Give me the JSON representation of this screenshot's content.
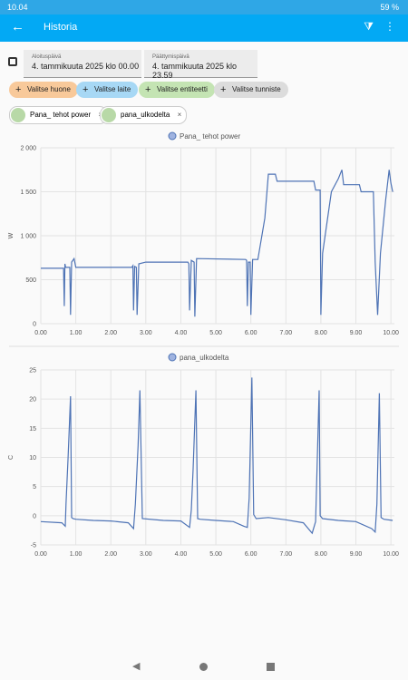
{
  "status_bar": {
    "time": "10.04",
    "battery": "59 %"
  },
  "app_bar": {
    "title": "Historia"
  },
  "date_range": {
    "start_label": "Aloituspäivä",
    "start": "4. tammikuuta 2025 klo 00.00",
    "end_label": "Päättymispäivä",
    "end": "4. tammikuuta 2025 klo 23.59"
  },
  "pickers": [
    "Valitse huone",
    "Valitse laite",
    "Valitse entiteetti",
    "Valitse tunniste"
  ],
  "selected": [
    "Pana_ tehot power",
    "pana_ulkodelta"
  ],
  "chart_data": [
    {
      "type": "line",
      "ylabel": "W",
      "grid": true,
      "x": [
        0,
        0.65,
        0.67,
        0.69,
        0.71,
        0.83,
        0.85,
        0.88,
        0.95,
        1.0,
        2.6,
        2.63,
        2.65,
        2.68,
        2.73,
        2.75,
        2.8,
        3.0,
        4.2,
        4.23,
        4.25,
        4.3,
        4.38,
        4.4,
        4.45,
        5.85,
        5.88,
        5.9,
        5.93,
        5.98,
        6.0,
        6.05,
        6.2,
        6.4,
        6.5,
        6.7,
        6.75,
        7.8,
        7.85,
        7.98,
        8.0,
        8.05,
        8.3,
        8.5,
        8.6,
        8.65,
        9.1,
        9.15,
        9.5,
        9.55,
        9.62,
        9.7,
        9.85,
        9.95,
        10.0,
        10.05
      ],
      "series": [
        {
          "name": "Pana_ tehot power",
          "color": "#4e73b5",
          "values": [
            630,
            630,
            200,
            680,
            640,
            640,
            100,
            700,
            740,
            640,
            640,
            660,
            150,
            650,
            640,
            100,
            680,
            700,
            700,
            680,
            150,
            720,
            700,
            80,
            740,
            730,
            720,
            200,
            700,
            700,
            100,
            730,
            730,
            1200,
            1700,
            1700,
            1620,
            1620,
            1520,
            1520,
            100,
            800,
            1500,
            1650,
            1750,
            1580,
            1580,
            1500,
            1500,
            700,
            100,
            800,
            1400,
            1750,
            1600,
            1500
          ]
        }
      ],
      "xlim": [
        0,
        10.1
      ],
      "xticks": [
        {
          "value": 0,
          "label": "0.00"
        },
        {
          "value": 1,
          "label": "1.00"
        },
        {
          "value": 2,
          "label": "2.00"
        },
        {
          "value": 3,
          "label": "3.00"
        },
        {
          "value": 4,
          "label": "4.00"
        },
        {
          "value": 5,
          "label": "5.00"
        },
        {
          "value": 6,
          "label": "6.00"
        },
        {
          "value": 7,
          "label": "7.00"
        },
        {
          "value": 8,
          "label": "8.00"
        },
        {
          "value": 9,
          "label": "9.00"
        },
        {
          "value": 10,
          "label": "10.00"
        }
      ],
      "ylim": [
        0,
        2000
      ],
      "yticks": [
        0,
        500,
        {
          "value": 1000,
          "label": "1 000"
        },
        {
          "value": 1500,
          "label": "1 500"
        },
        {
          "value": 2000,
          "label": "2 000"
        }
      ]
    },
    {
      "type": "line",
      "ylabel": "C",
      "grid": true,
      "x": [
        0,
        0.6,
        0.7,
        0.72,
        0.78,
        0.85,
        0.88,
        0.92,
        1.0,
        1.5,
        2.0,
        2.5,
        2.65,
        2.7,
        2.78,
        2.83,
        2.9,
        3.5,
        4.0,
        4.25,
        4.3,
        4.35,
        4.43,
        4.48,
        4.55,
        5.0,
        5.5,
        5.8,
        5.9,
        5.95,
        6.03,
        6.08,
        6.15,
        6.5,
        7.0,
        7.5,
        7.75,
        7.85,
        7.95,
        7.98,
        8.05,
        8.5,
        9.0,
        9.45,
        9.55,
        9.6,
        9.67,
        9.72,
        9.8,
        10.05
      ],
      "series": [
        {
          "name": "pana_ulkodelta",
          "color": "#4e73b5",
          "values": [
            -1,
            -1.2,
            -1.8,
            2,
            10,
            20.5,
            -0.3,
            -0.5,
            -0.6,
            -0.8,
            -0.9,
            -1.2,
            -2.2,
            2,
            12,
            21.5,
            -0.5,
            -0.8,
            -0.9,
            -2,
            1,
            8,
            21.5,
            -0.5,
            -0.6,
            -0.8,
            -1,
            -1.8,
            -2,
            3,
            23.7,
            0.2,
            -0.5,
            -0.3,
            -0.7,
            -1.2,
            -3,
            -1,
            21.5,
            0,
            -0.5,
            -0.8,
            -1,
            -2.2,
            -2.8,
            2,
            21,
            -0.3,
            -0.6,
            -0.8
          ]
        }
      ],
      "xlim": [
        0,
        10.1
      ],
      "xticks": [
        {
          "value": 0,
          "label": "0.00"
        },
        {
          "value": 1,
          "label": "1.00"
        },
        {
          "value": 2,
          "label": "2.00"
        },
        {
          "value": 3,
          "label": "3.00"
        },
        {
          "value": 4,
          "label": "4.00"
        },
        {
          "value": 5,
          "label": "5.00"
        },
        {
          "value": 6,
          "label": "6.00"
        },
        {
          "value": 7,
          "label": "7.00"
        },
        {
          "value": 8,
          "label": "8.00"
        },
        {
          "value": 9,
          "label": "9.00"
        },
        {
          "value": 10,
          "label": "10.00"
        }
      ],
      "ylim": [
        -5,
        25
      ],
      "yticks": [
        -5,
        0,
        5,
        10,
        15,
        20,
        25
      ]
    }
  ]
}
